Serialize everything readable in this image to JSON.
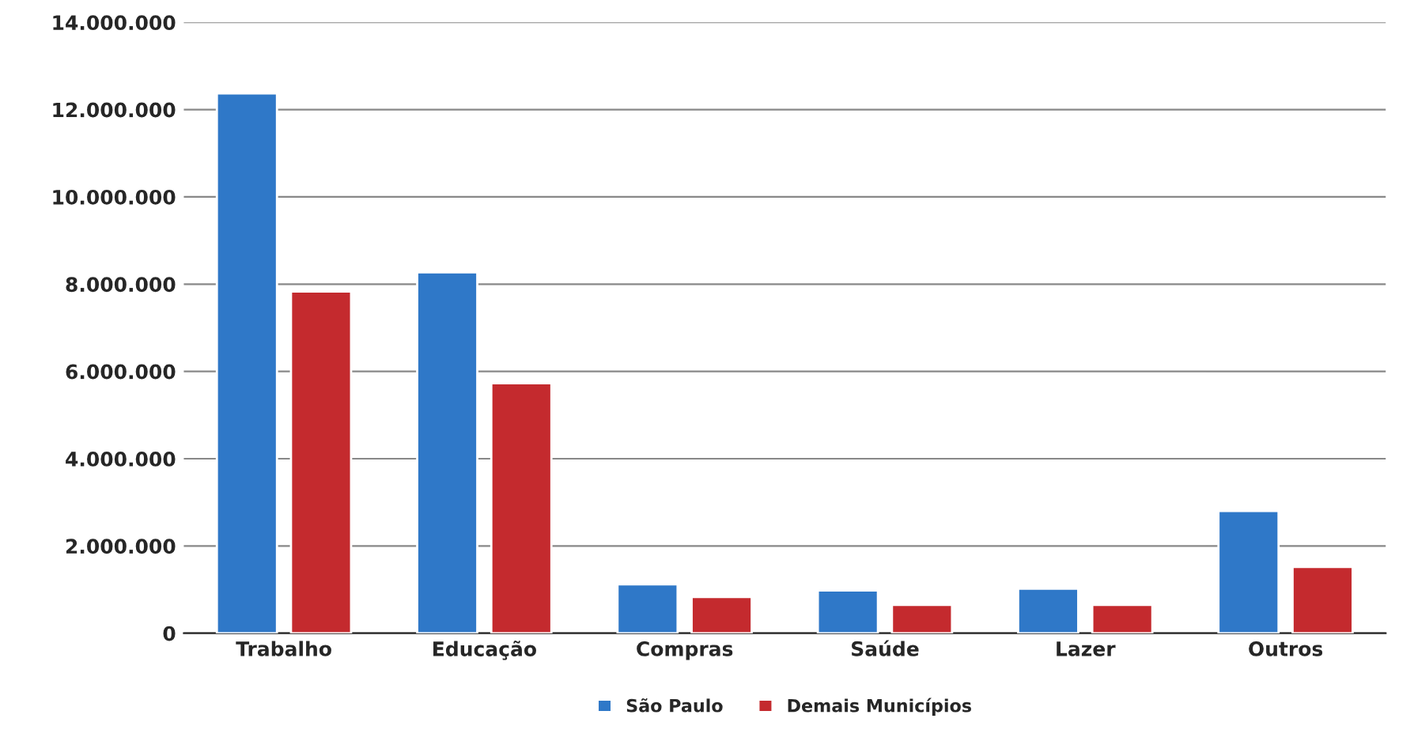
{
  "chart_data": {
    "type": "bar",
    "categories": [
      "Trabalho",
      "Educação",
      "Compras",
      "Saúde",
      "Lazer",
      "Outros"
    ],
    "series": [
      {
        "name": "São Paulo",
        "color": "#2f78c8",
        "values": [
          12370000,
          8270000,
          1120000,
          980000,
          1020000,
          2800000
        ]
      },
      {
        "name": "Demais Municípios",
        "color": "#c42a2e",
        "values": [
          7830000,
          5730000,
          830000,
          650000,
          650000,
          1520000
        ]
      }
    ],
    "ylim": [
      0,
      14000000
    ],
    "yticks": [
      {
        "value": 0,
        "label": "0"
      },
      {
        "value": 2000000,
        "label": "2.000.000"
      },
      {
        "value": 4000000,
        "label": "4.000.000"
      },
      {
        "value": 6000000,
        "label": "6.000.000"
      },
      {
        "value": 8000000,
        "label": "8.000.000"
      },
      {
        "value": 10000000,
        "label": "10.000.000"
      },
      {
        "value": 12000000,
        "label": "12.000.000"
      },
      {
        "value": 14000000,
        "label": "14.000.000"
      }
    ],
    "grid": "y",
    "legend": "bottom"
  }
}
